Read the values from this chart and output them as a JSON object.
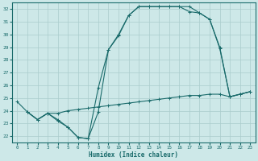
{
  "xlabel": "Humidex (Indice chaleur)",
  "xlim": [
    -0.5,
    23.5
  ],
  "ylim": [
    21.5,
    32.5
  ],
  "xticks": [
    0,
    1,
    2,
    3,
    4,
    5,
    6,
    7,
    8,
    9,
    10,
    11,
    12,
    13,
    14,
    15,
    16,
    17,
    18,
    19,
    20,
    21,
    22,
    23
  ],
  "yticks": [
    22,
    23,
    24,
    25,
    26,
    27,
    28,
    29,
    30,
    31,
    32
  ],
  "bg_color": "#cde8e8",
  "grid_color": "#aacccc",
  "line_color": "#1a6b6b",
  "line1": {
    "x": [
      0,
      1,
      2,
      3,
      4,
      5,
      6,
      7,
      8,
      9,
      10,
      11,
      12,
      13,
      14,
      15,
      16,
      17,
      18,
      19,
      20,
      21,
      22,
      23
    ],
    "y": [
      24.7,
      23.9,
      23.3,
      23.8,
      23.2,
      22.7,
      21.9,
      21.8,
      23.9,
      28.8,
      29.9,
      31.5,
      32.2,
      32.2,
      32.2,
      32.2,
      32.2,
      32.2,
      31.7,
      31.2,
      28.9,
      25.1,
      25.3,
      25.5
    ]
  },
  "line2": {
    "x": [
      1,
      2,
      3,
      4,
      5,
      6,
      7,
      8,
      9,
      10,
      11,
      12,
      13,
      14,
      15,
      16,
      17,
      18,
      19,
      20,
      21,
      22,
      23
    ],
    "y": [
      23.9,
      23.3,
      23.8,
      23.8,
      24.0,
      24.1,
      24.2,
      24.3,
      24.4,
      24.5,
      24.6,
      24.7,
      24.8,
      24.9,
      25.0,
      25.1,
      25.2,
      25.2,
      25.3,
      25.3,
      25.1,
      25.3,
      25.5
    ]
  },
  "line3": {
    "x": [
      1,
      2,
      3,
      4,
      5,
      6,
      7,
      8,
      9,
      10,
      11,
      12,
      13,
      14,
      15,
      16,
      17,
      18,
      19,
      20,
      21,
      22,
      23
    ],
    "y": [
      23.9,
      23.3,
      23.8,
      23.3,
      22.7,
      21.9,
      21.8,
      25.8,
      28.8,
      30.0,
      31.5,
      32.2,
      32.2,
      32.2,
      32.2,
      32.2,
      31.8,
      31.7,
      31.2,
      29.0,
      25.1,
      25.3,
      25.5
    ]
  }
}
